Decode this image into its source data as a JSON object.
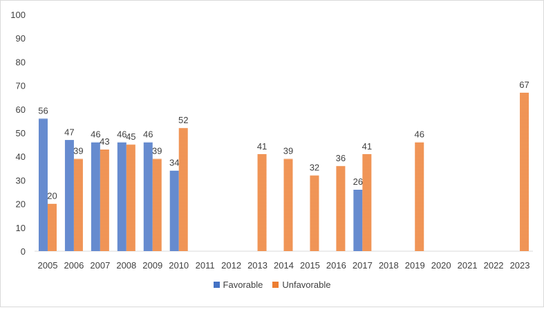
{
  "chart_data": {
    "type": "bar",
    "categories": [
      "2005",
      "2006",
      "2007",
      "2008",
      "2009",
      "2010",
      "2011",
      "2012",
      "2013",
      "2014",
      "2015",
      "2016",
      "2017",
      "2018",
      "2019",
      "2020",
      "2021",
      "2022",
      "2023"
    ],
    "series": [
      {
        "name": "Favorable",
        "color": "#4472c4",
        "values": [
          56,
          47,
          46,
          46,
          46,
          34,
          null,
          null,
          null,
          null,
          null,
          null,
          26,
          null,
          null,
          null,
          null,
          null,
          null
        ]
      },
      {
        "name": "Unfavorable",
        "color": "#ed7d31",
        "values": [
          20,
          39,
          43,
          45,
          39,
          52,
          null,
          null,
          41,
          39,
          32,
          36,
          41,
          null,
          46,
          null,
          null,
          null,
          67
        ]
      }
    ],
    "y_ticks": [
      "0",
      "10",
      "20",
      "30",
      "40",
      "50",
      "60",
      "70",
      "80",
      "90",
      "100"
    ],
    "ylim": [
      0,
      100
    ],
    "grid": false,
    "legend_position": "bottom",
    "title": "",
    "xlabel": "",
    "ylabel": ""
  }
}
